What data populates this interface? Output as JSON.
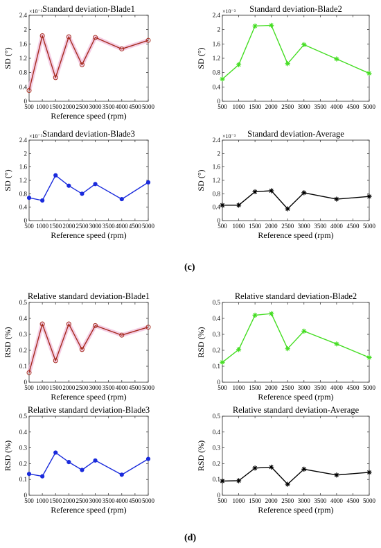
{
  "panel_labels": [
    "(c)",
    "(d)"
  ],
  "chart_data": [
    {
      "type": "line",
      "title": "Standard deviation-Blade1",
      "xlabel": "Reference speed (rpm)",
      "ylabel": "SD (°)",
      "y_exponent_label": "×10⁻³",
      "x": [
        500,
        1000,
        1500,
        2000,
        2500,
        3000,
        4000,
        5000
      ],
      "xlim": [
        500,
        5000
      ],
      "ylim": [
        0,
        2.4
      ],
      "xticks": [
        500,
        1000,
        1500,
        2000,
        2500,
        3000,
        3500,
        4000,
        4500,
        5000
      ],
      "yticks": [
        0,
        0.4,
        0.8,
        1.2,
        1.6,
        2,
        2.4
      ],
      "series": [
        {
          "values": [
            0.3,
            1.83,
            0.66,
            1.8,
            1.02,
            1.78,
            1.46,
            1.7
          ],
          "color": "#a52a1c",
          "marker": "circle",
          "halo": "#f0b8d8"
        }
      ]
    },
    {
      "type": "line",
      "title": "Standard deviation-Blade2",
      "xlabel": "",
      "ylabel": "SD (°)",
      "y_exponent_label": "×10⁻³",
      "x": [
        500,
        1000,
        1500,
        2000,
        2500,
        3000,
        4000,
        5000
      ],
      "xlim": [
        500,
        5000
      ],
      "ylim": [
        0,
        2.4
      ],
      "xticks": [
        500,
        1000,
        1500,
        2000,
        2500,
        3000,
        3500,
        4000,
        4500,
        5000
      ],
      "yticks": [
        0,
        0.4,
        0.8,
        1.2,
        1.6,
        2,
        2.4
      ],
      "series": [
        {
          "values": [
            0.62,
            1.02,
            2.1,
            2.12,
            1.05,
            1.58,
            1.18,
            0.78
          ],
          "color": "#44dd22",
          "marker": "star"
        }
      ]
    },
    {
      "type": "line",
      "title": "Standard deviation-Blade3",
      "xlabel": "Reference speed (rpm)",
      "ylabel": "SD (°)",
      "y_exponent_label": "×10⁻³",
      "x": [
        500,
        1000,
        1500,
        2000,
        2500,
        3000,
        4000,
        5000
      ],
      "xlim": [
        500,
        5000
      ],
      "ylim": [
        0,
        2.4
      ],
      "xticks": [
        500,
        1000,
        1500,
        2000,
        2500,
        3000,
        3500,
        4000,
        4500,
        5000
      ],
      "yticks": [
        0,
        0.4,
        0.8,
        1.2,
        1.6,
        2,
        2.4
      ],
      "series": [
        {
          "values": [
            0.68,
            0.6,
            1.35,
            1.04,
            0.8,
            1.09,
            0.64,
            1.14
          ],
          "color": "#1a2bdc",
          "marker": "dot"
        }
      ]
    },
    {
      "type": "line",
      "title": "Standard deviation-Average",
      "xlabel": "Reference speed (rpm)",
      "ylabel": "SD (°)",
      "y_exponent_label": "×10⁻³",
      "x": [
        500,
        1000,
        1500,
        2000,
        2500,
        3000,
        4000,
        5000
      ],
      "xlim": [
        500,
        5000
      ],
      "ylim": [
        0,
        2.4
      ],
      "xticks": [
        500,
        1000,
        1500,
        2000,
        2500,
        3000,
        3500,
        4000,
        4500,
        5000
      ],
      "yticks": [
        0,
        0.4,
        0.8,
        1.2,
        1.6,
        2,
        2.4
      ],
      "series": [
        {
          "values": [
            0.46,
            0.46,
            0.86,
            0.89,
            0.35,
            0.83,
            0.64,
            0.72
          ],
          "color": "#000000",
          "marker": "star"
        }
      ]
    },
    {
      "type": "line",
      "title": "Relative standard deviation-Blade1",
      "xlabel": "Reference speed (rpm)",
      "ylabel": "RSD (%)",
      "y_exponent_label": "",
      "x": [
        500,
        1000,
        1500,
        2000,
        2500,
        3000,
        4000,
        5000
      ],
      "xlim": [
        500,
        5000
      ],
      "ylim": [
        0,
        0.5
      ],
      "xticks": [
        500,
        1000,
        1500,
        2000,
        2500,
        3000,
        3500,
        4000,
        4500,
        5000
      ],
      "yticks": [
        0,
        0.1,
        0.2,
        0.3,
        0.4,
        0.5
      ],
      "series": [
        {
          "values": [
            0.06,
            0.365,
            0.135,
            0.365,
            0.205,
            0.355,
            0.295,
            0.345
          ],
          "color": "#a52a1c",
          "marker": "circle",
          "halo": "#f0b8d8"
        }
      ]
    },
    {
      "type": "line",
      "title": "Relative standard deviation-Blade2",
      "xlabel": "Reference speed (rpm)",
      "ylabel": "RSD (%)",
      "y_exponent_label": "",
      "x": [
        500,
        1000,
        1500,
        2000,
        2500,
        3000,
        4000,
        5000
      ],
      "xlim": [
        500,
        5000
      ],
      "ylim": [
        0,
        0.5
      ],
      "xticks": [
        500,
        1000,
        1500,
        2000,
        2500,
        3000,
        3500,
        4000,
        4500,
        5000
      ],
      "yticks": [
        0,
        0.1,
        0.2,
        0.3,
        0.4,
        0.5
      ],
      "series": [
        {
          "values": [
            0.125,
            0.205,
            0.42,
            0.43,
            0.21,
            0.32,
            0.24,
            0.155
          ],
          "color": "#44dd22",
          "marker": "star"
        }
      ]
    },
    {
      "type": "line",
      "title": "Relative standard deviation-Blade3",
      "xlabel": "Reference speed (rpm)",
      "ylabel": "RSD (%)",
      "y_exponent_label": "",
      "x": [
        500,
        1000,
        1500,
        2000,
        2500,
        3000,
        4000,
        5000
      ],
      "xlim": [
        500,
        5000
      ],
      "ylim": [
        0,
        0.5
      ],
      "xticks": [
        500,
        1000,
        1500,
        2000,
        2500,
        3000,
        3500,
        4000,
        4500,
        5000
      ],
      "yticks": [
        0,
        0.1,
        0.2,
        0.3,
        0.4,
        0.5
      ],
      "series": [
        {
          "values": [
            0.135,
            0.12,
            0.27,
            0.21,
            0.16,
            0.22,
            0.13,
            0.23
          ],
          "color": "#1a2bdc",
          "marker": "dot"
        }
      ]
    },
    {
      "type": "line",
      "title": "Relative standard deviation-Average",
      "xlabel": "Reference speed (rpm)",
      "ylabel": "RSD (%)",
      "y_exponent_label": "",
      "x": [
        500,
        1000,
        1500,
        2000,
        2500,
        3000,
        4000,
        5000
      ],
      "xlim": [
        500,
        5000
      ],
      "ylim": [
        0,
        0.5
      ],
      "xticks": [
        500,
        1000,
        1500,
        2000,
        2500,
        3000,
        3500,
        4000,
        4500,
        5000
      ],
      "yticks": [
        0,
        0.1,
        0.2,
        0.3,
        0.4,
        0.5
      ],
      "series": [
        {
          "values": [
            0.09,
            0.092,
            0.172,
            0.178,
            0.07,
            0.165,
            0.128,
            0.145
          ],
          "color": "#000000",
          "marker": "star"
        }
      ]
    }
  ]
}
